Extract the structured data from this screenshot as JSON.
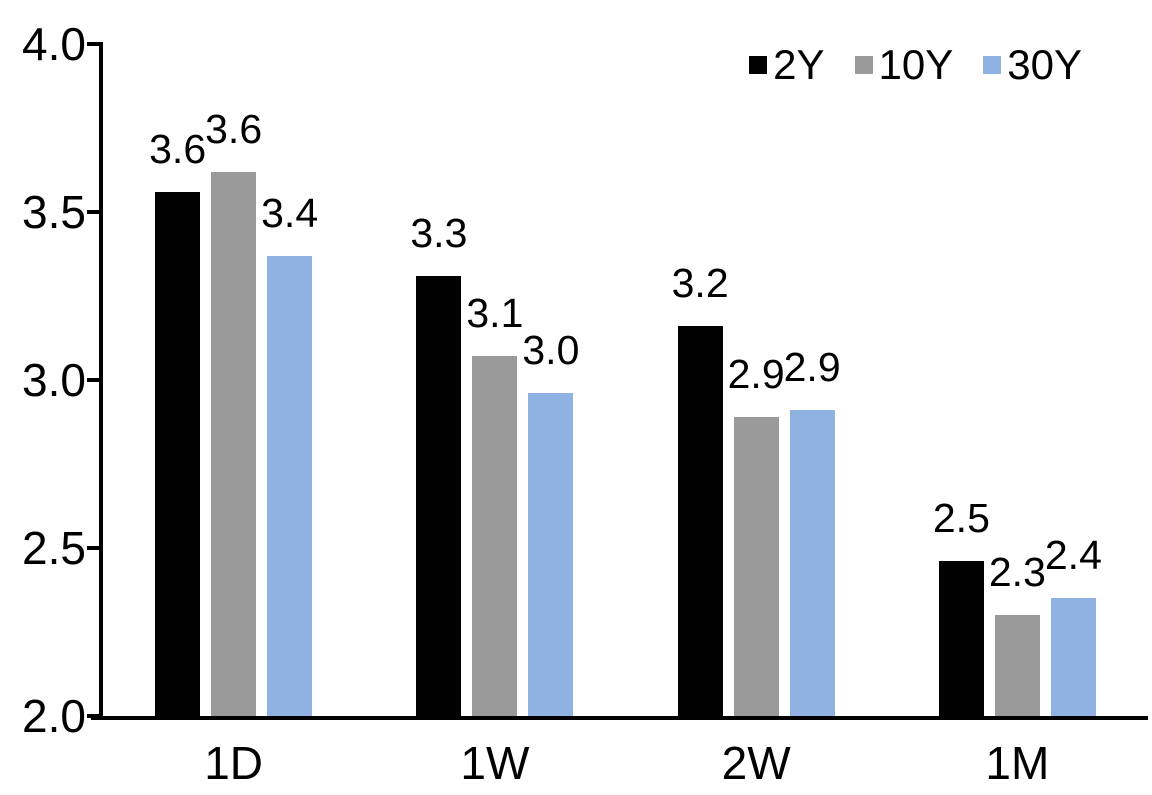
{
  "chart_data": {
    "type": "bar",
    "title": "",
    "categories": [
      "1D",
      "1W",
      "2W",
      "1M"
    ],
    "series": [
      {
        "name": "2Y",
        "color": "#000000",
        "values": [
          3.6,
          3.3,
          3.2,
          2.5
        ],
        "data_labels": [
          "3.6",
          "3.3",
          "3.2",
          "2.5"
        ],
        "bar_heights": [
          3.56,
          3.31,
          3.16,
          2.46
        ]
      },
      {
        "name": "10Y",
        "color": "#9A9A9A",
        "values": [
          3.6,
          3.1,
          2.9,
          2.3
        ],
        "data_labels": [
          "3.6",
          "3.1",
          "2.9",
          "2.3"
        ],
        "bar_heights": [
          3.62,
          3.07,
          2.89,
          2.3
        ]
      },
      {
        "name": "30Y",
        "color": "#8FB2E2",
        "values": [
          3.4,
          3.0,
          2.9,
          2.4
        ],
        "data_labels": [
          "3.4",
          "3.0",
          "2.9",
          "2.4"
        ],
        "bar_heights": [
          3.37,
          2.96,
          2.91,
          2.35
        ]
      }
    ],
    "y_axis": {
      "min": 2.0,
      "max": 4.0,
      "tick_values": [
        4.0,
        3.5,
        3.0,
        2.5,
        2.0
      ],
      "tick_labels": [
        "4.0",
        "3.5",
        "3.0",
        "2.5",
        "2.0"
      ]
    },
    "x_axis": {
      "tick_labels": [
        "1D",
        "1W",
        "2W",
        "1M"
      ]
    },
    "legend": {
      "position": "top-right",
      "entries": [
        "2Y",
        "10Y",
        "30Y"
      ]
    },
    "grid": false,
    "data_labels_shown": true,
    "colors": {
      "axis": "#000000",
      "text": "#000000",
      "background": "#FFFFFF"
    }
  }
}
